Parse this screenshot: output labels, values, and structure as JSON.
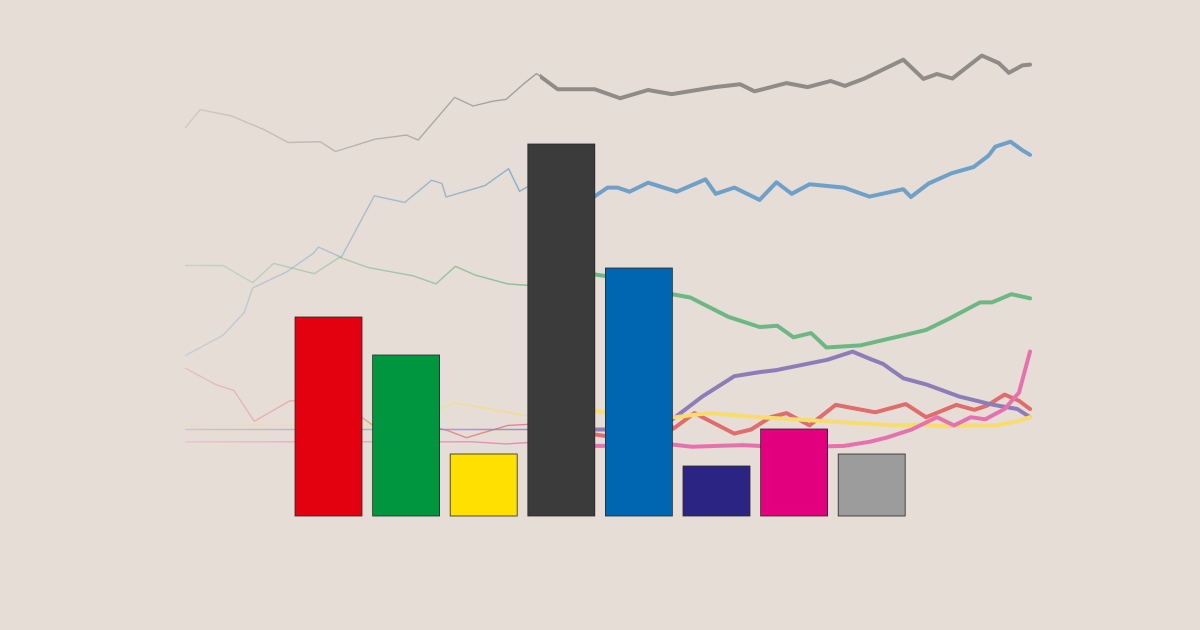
{
  "background": "#E6DDD6",
  "chart_data": [
    {
      "type": "line",
      "title": "",
      "xlabel": "",
      "ylabel": "",
      "grid": false,
      "legend": "none",
      "x_range": [
        0,
        1
      ],
      "y_range": [
        0,
        1
      ],
      "series": [
        {
          "color": "#8F8B87",
          "x": [
            0.0,
            0.018,
            0.055,
            0.095,
            0.122,
            0.16,
            0.178,
            0.225,
            0.262,
            0.276,
            0.319,
            0.341,
            0.365,
            0.38,
            0.399,
            0.416,
            0.441,
            0.466,
            0.485,
            0.515,
            0.548,
            0.576,
            0.627,
            0.657,
            0.674,
            0.712,
            0.737,
            0.764,
            0.781,
            0.803,
            0.85,
            0.874,
            0.89,
            0.908,
            0.943,
            0.963,
            0.975,
            0.991,
            1.0
          ],
          "y": [
            0.785,
            0.83,
            0.815,
            0.78,
            0.75,
            0.752,
            0.728,
            0.758,
            0.768,
            0.756,
            0.86,
            0.839,
            0.851,
            0.855,
            0.89,
            0.918,
            0.88,
            0.88,
            0.88,
            0.858,
            0.878,
            0.868,
            0.885,
            0.892,
            0.875,
            0.895,
            0.885,
            0.9,
            0.888,
            0.905,
            0.952,
            0.905,
            0.917,
            0.906,
            0.962,
            0.944,
            0.92,
            0.938,
            0.94
          ]
        },
        {
          "color": "#6FA0C8",
          "x": [
            0.0,
            0.045,
            0.07,
            0.08,
            0.121,
            0.152,
            0.158,
            0.185,
            0.224,
            0.26,
            0.292,
            0.304,
            0.309,
            0.355,
            0.383,
            0.396,
            0.432,
            0.465,
            0.475,
            0.5,
            0.512,
            0.526,
            0.548,
            0.582,
            0.616,
            0.628,
            0.65,
            0.68,
            0.7,
            0.718,
            0.739,
            0.78,
            0.81,
            0.85,
            0.859,
            0.88,
            0.907,
            0.933,
            0.951,
            0.959,
            0.977,
            0.991,
            1.0
          ],
          "y": [
            0.23,
            0.28,
            0.335,
            0.395,
            0.435,
            0.48,
            0.495,
            0.47,
            0.62,
            0.604,
            0.658,
            0.65,
            0.617,
            0.645,
            0.686,
            0.631,
            0.673,
            0.62,
            0.605,
            0.64,
            0.64,
            0.63,
            0.652,
            0.63,
            0.66,
            0.625,
            0.64,
            0.61,
            0.653,
            0.625,
            0.648,
            0.64,
            0.618,
            0.636,
            0.617,
            0.65,
            0.675,
            0.69,
            0.718,
            0.74,
            0.752,
            0.731,
            0.72
          ]
        },
        {
          "color": "#E06C6C",
          "x": [
            0.0,
            0.036,
            0.058,
            0.082,
            0.124,
            0.155,
            0.196,
            0.229,
            0.287,
            0.311,
            0.333,
            0.382,
            0.439,
            0.478,
            0.512,
            0.546,
            0.57,
            0.578,
            0.603,
            0.65,
            0.67,
            0.693,
            0.712,
            0.739,
            0.77,
            0.817,
            0.853,
            0.877,
            0.913,
            0.934,
            0.949,
            0.97,
            0.987,
            1.0
          ],
          "y": [
            0.2,
            0.16,
            0.145,
            0.07,
            0.12,
            0.12,
            0.1,
            0.05,
            0.061,
            0.047,
            0.03,
            0.06,
            0.066,
            0.04,
            0.03,
            0.05,
            0.074,
            0.052,
            0.09,
            0.04,
            0.05,
            0.08,
            0.09,
            0.06,
            0.11,
            0.092,
            0.112,
            0.08,
            0.11,
            0.098,
            0.108,
            0.135,
            0.12,
            0.1
          ]
        },
        {
          "color": "#6DB784",
          "x": [
            0.0,
            0.045,
            0.08,
            0.105,
            0.153,
            0.183,
            0.217,
            0.27,
            0.297,
            0.32,
            0.343,
            0.382,
            0.417,
            0.461,
            0.503,
            0.53,
            0.548,
            0.571,
            0.598,
            0.643,
            0.68,
            0.701,
            0.72,
            0.741,
            0.759,
            0.799,
            0.851,
            0.877,
            0.904,
            0.941,
            0.955,
            0.978,
            1.0
          ],
          "y": [
            0.45,
            0.45,
            0.408,
            0.455,
            0.43,
            0.47,
            0.445,
            0.425,
            0.405,
            0.448,
            0.427,
            0.405,
            0.4,
            0.435,
            0.423,
            0.38,
            0.388,
            0.382,
            0.372,
            0.325,
            0.3,
            0.303,
            0.275,
            0.285,
            0.25,
            0.255,
            0.28,
            0.293,
            0.32,
            0.36,
            0.36,
            0.38,
            0.37
          ]
        },
        {
          "color": "#8C7DB8",
          "x": [
            0.0,
            0.56,
            0.58,
            0.612,
            0.65,
            0.68,
            0.7,
            0.76,
            0.79,
            0.811,
            0.826,
            0.85,
            0.877,
            0.917,
            0.937,
            0.957,
            0.985,
            1.0
          ],
          "y": [
            0.05,
            0.05,
            0.08,
            0.13,
            0.18,
            0.19,
            0.195,
            0.22,
            0.24,
            0.222,
            0.21,
            0.175,
            0.16,
            0.13,
            0.12,
            0.11,
            0.1,
            0.08
          ]
        },
        {
          "color": "#F8DC6E",
          "x": [
            0.0,
            0.25,
            0.32,
            0.4,
            0.43,
            0.47,
            0.54,
            0.58,
            0.62,
            0.65,
            0.68,
            0.72,
            0.76,
            0.8,
            0.84,
            0.87,
            0.9,
            0.93,
            0.96,
            0.985,
            1.0
          ],
          "y": [
            0.06,
            0.06,
            0.115,
            0.085,
            0.08,
            0.1,
            0.08,
            0.08,
            0.09,
            0.085,
            0.08,
            0.075,
            0.07,
            0.065,
            0.06,
            0.062,
            0.058,
            0.06,
            0.06,
            0.07,
            0.08
          ]
        },
        {
          "color": "#E572AE",
          "x": [
            0.0,
            0.34,
            0.38,
            0.42,
            0.45,
            0.48,
            0.52,
            0.54,
            0.57,
            0.6,
            0.63,
            0.66,
            0.7,
            0.74,
            0.78,
            0.81,
            0.83,
            0.86,
            0.89,
            0.91,
            0.93,
            0.947,
            0.97,
            0.987,
            1.0
          ],
          "y": [
            0.02,
            0.02,
            0.015,
            0.02,
            0.01,
            0.01,
            0.01,
            0.01,
            0.015,
            0.008,
            0.01,
            0.012,
            0.008,
            0.008,
            0.01,
            0.02,
            0.03,
            0.05,
            0.08,
            0.06,
            0.08,
            0.075,
            0.1,
            0.14,
            0.24
          ]
        }
      ]
    },
    {
      "type": "bar",
      "title": "",
      "xlabel": "",
      "ylabel": "",
      "grid": false,
      "legend": "none",
      "categories": [
        "",
        "",
        "",
        "",
        "",
        "",
        "",
        ""
      ],
      "values": [
        199,
        161,
        62,
        372,
        248,
        50,
        87,
        62
      ],
      "colors": [
        "#E3000F",
        "#009640",
        "#FFE000",
        "#3B3B3B",
        "#0066B2",
        "#2C2482",
        "#E3007F",
        "#9C9C9C"
      ],
      "ylim": [
        0,
        372
      ]
    }
  ]
}
